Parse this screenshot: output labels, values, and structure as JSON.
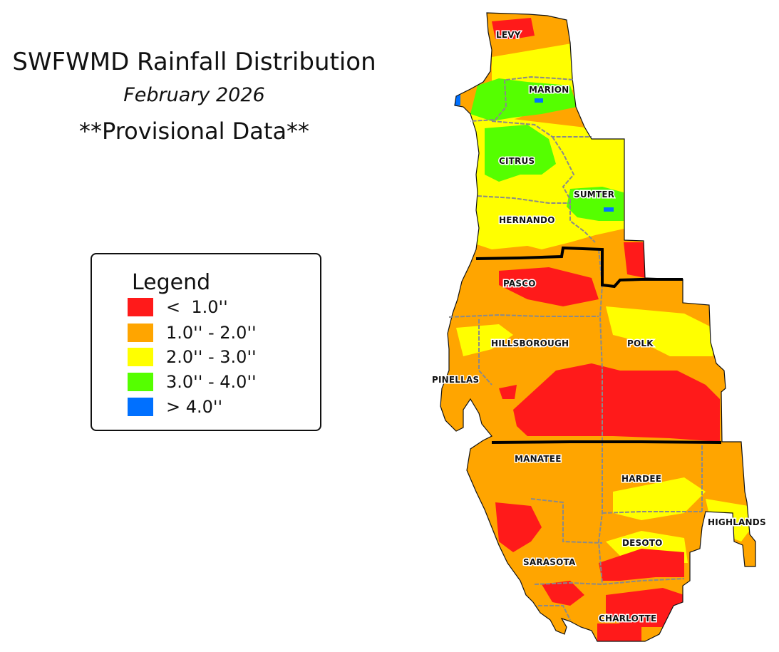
{
  "header": {
    "title": "SWFWMD Rainfall Distribution",
    "subtitle": "February 2026",
    "note": "**Provisional Data**"
  },
  "legend": {
    "title": "Legend",
    "items": [
      {
        "label": "<  1.0''",
        "color": "#ff1a1a"
      },
      {
        "label": "1.0'' - 2.0''",
        "color": "#ffa500"
      },
      {
        "label": "2.0'' - 3.0''",
        "color": "#ffff00"
      },
      {
        "label": "3.0'' - 4.0''",
        "color": "#55ff00"
      },
      {
        "label": "> 4.0''",
        "color": "#0070ff"
      }
    ]
  },
  "counties": {
    "levy": "LEVY",
    "marion": "MARION",
    "citrus": "CITRUS",
    "sumter": "SUMTER",
    "hernando": "HERNANDO",
    "pasco": "PASCO",
    "hillsborough": "HILLSBOROUGH",
    "polk": "POLK",
    "pinellas": "PINELLAS",
    "manatee": "MANATEE",
    "hardee": "HARDEE",
    "highlands": "HIGHLANDS",
    "desoto": "DESOTO",
    "sarasota": "SARASOTA",
    "charlotte": "CHARLOTTE"
  }
}
